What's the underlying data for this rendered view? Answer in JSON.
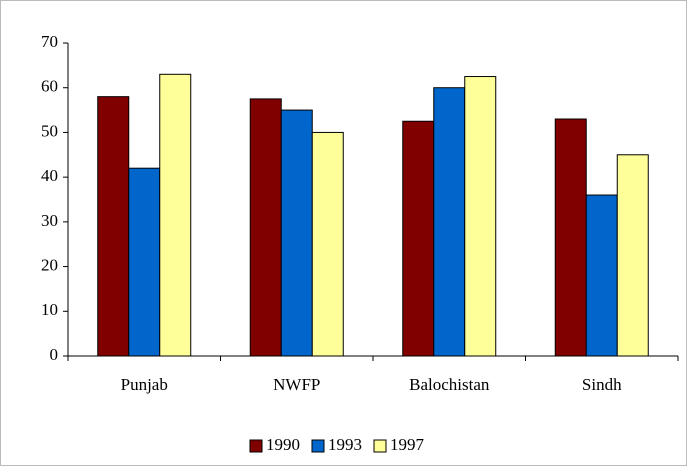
{
  "chart_data": {
    "type": "bar",
    "categories": [
      "Punjab",
      "NWFP",
      "Balochistan",
      "Sindh"
    ],
    "series": [
      {
        "name": "1990",
        "color": "#800000",
        "values": [
          58,
          57.5,
          52.5,
          53
        ]
      },
      {
        "name": "1993",
        "color": "#0066cc",
        "values": [
          42,
          55,
          60,
          36
        ]
      },
      {
        "name": "1997",
        "color": "#ffff99",
        "values": [
          63,
          50,
          62.5,
          45
        ]
      }
    ],
    "ylim": [
      0,
      70
    ],
    "yticks": [
      0,
      10,
      20,
      30,
      40,
      50,
      60,
      70
    ],
    "grid": false,
    "legend": "bottom"
  }
}
